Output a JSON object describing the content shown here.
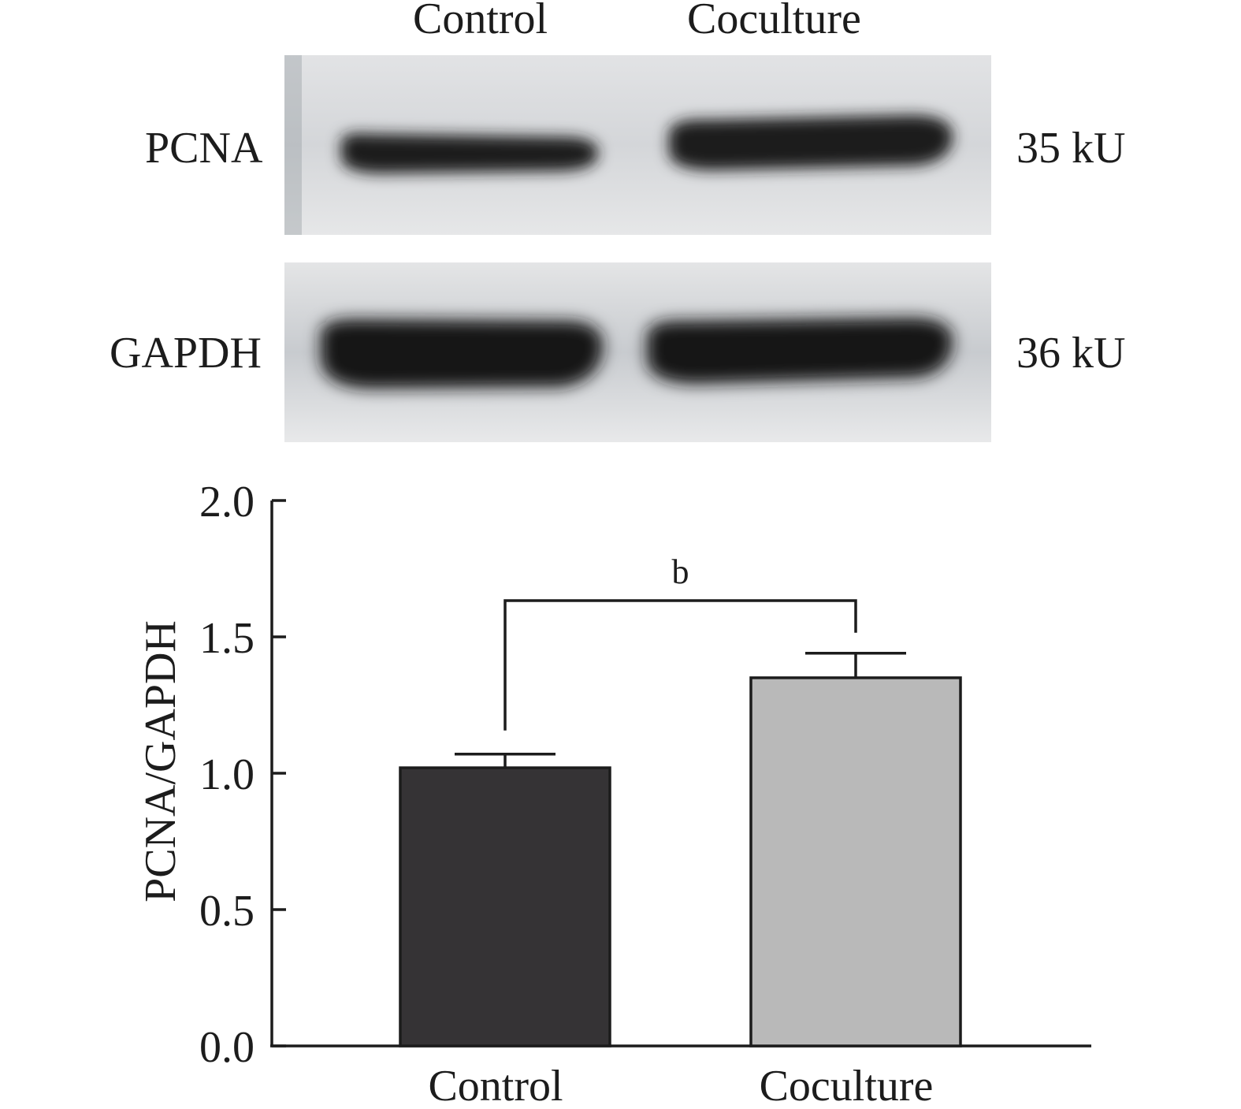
{
  "blot": {
    "lanes": [
      "Control",
      "Coculture"
    ],
    "rows": [
      {
        "protein": "PCNA",
        "size": "35 kU",
        "intensity": [
          0.88,
          1.0
        ]
      },
      {
        "protein": "GAPDH",
        "size": "36 kU",
        "intensity": [
          1.0,
          1.0
        ]
      }
    ]
  },
  "chart_data": {
    "type": "bar",
    "categories": [
      "Control",
      "Coculture"
    ],
    "values": [
      1.02,
      1.35
    ],
    "errors": [
      0.05,
      0.09
    ],
    "colors": [
      "#353335",
      "#b9b9b9"
    ],
    "ylabel": "PCNA/GAPDH",
    "ylim": [
      0,
      2.0
    ],
    "yticks": [
      "0.0",
      "0.5",
      "1.0",
      "1.5",
      "2.0"
    ],
    "ytick_values": [
      0,
      0.5,
      1.0,
      1.5,
      2.0
    ],
    "grid": false,
    "significance": {
      "label": "b",
      "between": [
        0,
        1
      ]
    }
  }
}
